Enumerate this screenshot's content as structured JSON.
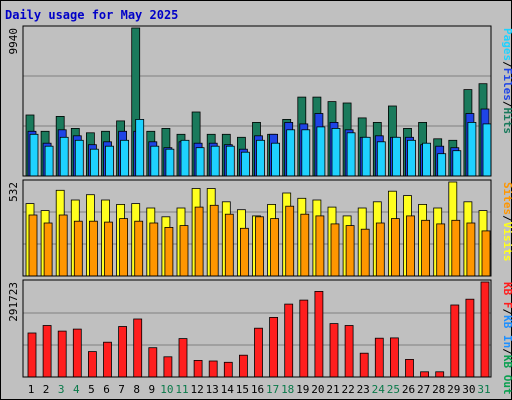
{
  "chart_data": {
    "type": "bar",
    "title": "Daily usage for May 2025",
    "categories": [
      "1",
      "2",
      "3",
      "4",
      "5",
      "6",
      "7",
      "8",
      "9",
      "10",
      "11",
      "12",
      "13",
      "14",
      "15",
      "16",
      "17",
      "18",
      "19",
      "20",
      "21",
      "22",
      "23",
      "24",
      "25",
      "26",
      "27",
      "28",
      "29",
      "30",
      "31"
    ],
    "weekend_days": [
      "3",
      "4",
      "10",
      "11",
      "17",
      "18",
      "24",
      "25",
      "31"
    ],
    "colors": {
      "hits": "#1a7a5c",
      "files": "#1e44e6",
      "pages": "#1ed2ff",
      "visits": "#ffff1e",
      "sites": "#ff9600",
      "kbf": "#ff1e1e",
      "kbin": "#1e90ff",
      "kbout": "#0aa050",
      "weekday_tick": "#000000",
      "weekend_tick": "#0a7a4a"
    },
    "panels": [
      {
        "ymax_label": "9940",
        "ylim": [
          0,
          9940
        ],
        "legend": [
          {
            "text": "Pages",
            "color": "#1ed2ff"
          },
          {
            "text": "Files",
            "color": "#1e44e6"
          },
          {
            "text": "Hits",
            "color": "#1a7a5c"
          }
        ],
        "series": [
          {
            "name": "Hits",
            "values": [
              4100,
              3000,
              4000,
              3200,
              2900,
              3000,
              3700,
              9940,
              3000,
              3200,
              2800,
              4300,
              2800,
              2800,
              2600,
              3600,
              2800,
              3800,
              5300,
              5300,
              5000,
              4900,
              3900,
              3600,
              4700,
              3200,
              3600,
              2500,
              2400,
              5800,
              6200
            ]
          },
          {
            "name": "Files",
            "values": [
              3000,
              2200,
              3100,
              2700,
              2100,
              2300,
              3000,
              3000,
              2300,
              1900,
              2300,
              2200,
              2200,
              2100,
              1800,
              2700,
              2800,
              3600,
              3500,
              4200,
              3600,
              3100,
              2600,
              2700,
              2600,
              2600,
              2100,
              2000,
              1900,
              4200,
              4500
            ]
          },
          {
            "name": "Pages",
            "values": [
              2800,
              2000,
              2600,
              2400,
              1800,
              2000,
              2400,
              3800,
              2000,
              1800,
              2400,
              1900,
              2000,
              2000,
              1600,
              2400,
              2200,
              3100,
              3100,
              3300,
              3200,
              2900,
              2600,
              2300,
              2600,
              2400,
              2200,
              1500,
              1700,
              3600,
              3500
            ]
          }
        ]
      },
      {
        "ymax_label": "532",
        "ylim": [
          0,
          532
        ],
        "legend": [
          {
            "text": "Sites",
            "color": "#ff9600"
          },
          {
            "text": "Visits",
            "color": "#ffff1e"
          }
        ],
        "series": [
          {
            "name": "Visits",
            "values": [
              410,
              370,
              485,
              430,
              460,
              430,
              405,
              410,
              385,
              335,
              385,
              495,
              495,
              420,
              375,
              340,
              405,
              470,
              440,
              430,
              390,
              340,
              385,
              420,
              480,
              455,
              405,
              385,
              532,
              420,
              370
            ]
          },
          {
            "name": "Sites",
            "values": [
              345,
              300,
              345,
              310,
              310,
              305,
              325,
              310,
              300,
              275,
              285,
              390,
              400,
              350,
              270,
              335,
              325,
              395,
              350,
              340,
              295,
              285,
              265,
              300,
              325,
              340,
              315,
              295,
              315,
              300,
              255
            ]
          }
        ]
      },
      {
        "ymax_label": "291723",
        "ylim": [
          0,
          291723
        ],
        "legend": [
          {
            "text": "KB F",
            "color": "#ff1e1e"
          },
          {
            "text": "KB In",
            "color": "#1e90ff"
          },
          {
            "text": "KB Out",
            "color": "#0aa050"
          }
        ],
        "series": [
          {
            "name": "KB F",
            "values": [
              135000,
              158000,
              141000,
              147000,
              78000,
              107000,
              155000,
              178000,
              90000,
              62000,
              118000,
              51000,
              49000,
              45000,
              67000,
              150000,
              183000,
              224000,
              236000,
              263000,
              164000,
              158000,
              73000,
              119000,
              120000,
              54000,
              16000,
              16000,
              221000,
              239000,
              291723
            ]
          }
        ]
      }
    ]
  }
}
